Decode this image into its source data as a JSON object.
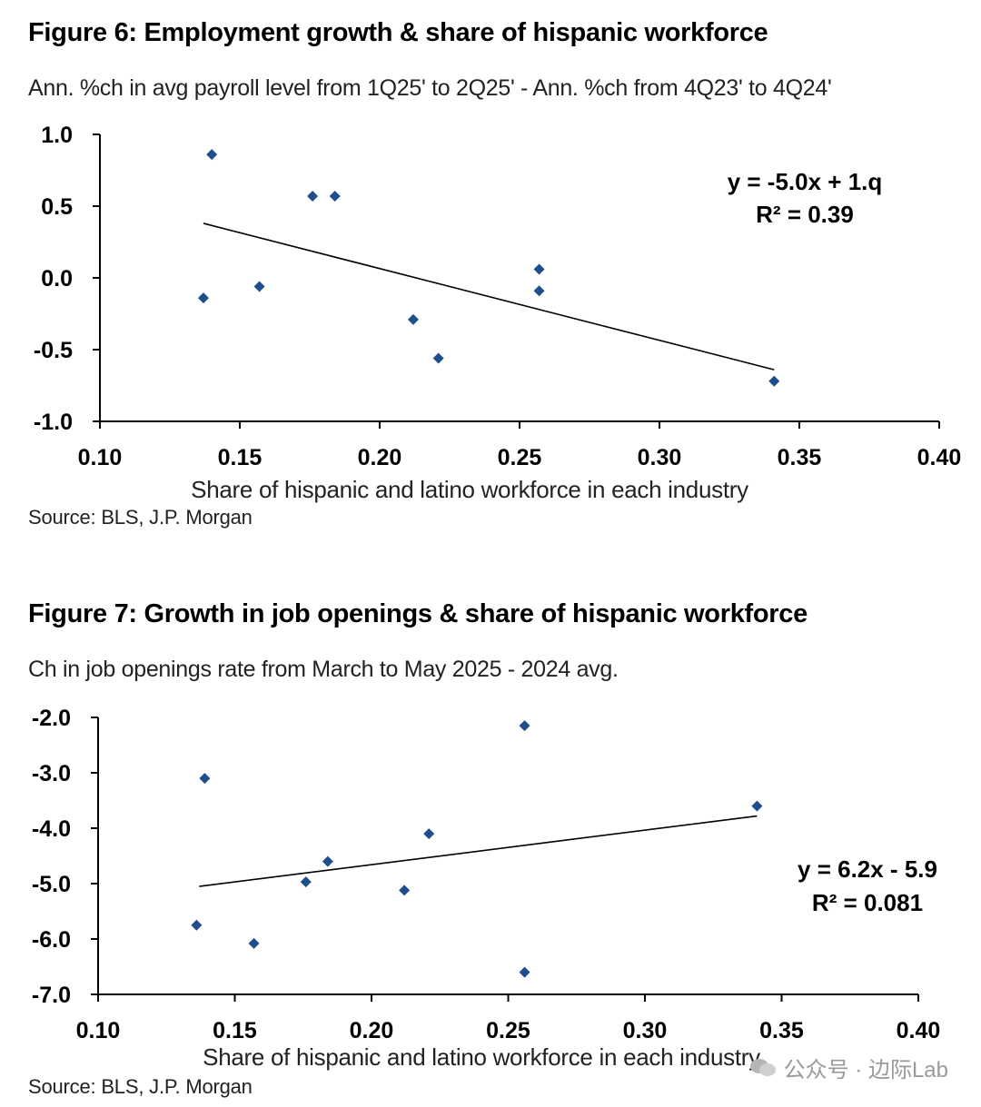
{
  "chart_data": [
    {
      "type": "scatter",
      "title": "Figure 6: Employment growth & share of hispanic workforce",
      "subtitle": "Ann. %ch in avg payroll level from 1Q25' to 2Q25' - Ann. %ch from 4Q23' to 4Q24'",
      "xlabel": "Share of hispanic and latino workforce in each industry",
      "ylabel": "",
      "source": "Source: BLS, J.P. Morgan",
      "xlim": [
        0.1,
        0.4
      ],
      "ylim": [
        -1.0,
        1.0
      ],
      "x_ticks": [
        "0.10",
        "0.15",
        "0.20",
        "0.25",
        "0.30",
        "0.35",
        "0.40"
      ],
      "y_ticks": [
        "1.0",
        "0.5",
        "0.0",
        "-0.5",
        "-1.0"
      ],
      "grid": false,
      "marker_color": "#1f4e8c",
      "points": [
        {
          "x": 0.14,
          "y": 0.86
        },
        {
          "x": 0.176,
          "y": 0.57
        },
        {
          "x": 0.184,
          "y": 0.57
        },
        {
          "x": 0.137,
          "y": -0.14
        },
        {
          "x": 0.157,
          "y": -0.06
        },
        {
          "x": 0.212,
          "y": -0.29
        },
        {
          "x": 0.221,
          "y": -0.56
        },
        {
          "x": 0.257,
          "y": 0.06
        },
        {
          "x": 0.257,
          "y": -0.09
        },
        {
          "x": 0.341,
          "y": -0.72
        }
      ],
      "trendline": {
        "x": [
          0.137,
          0.341
        ],
        "y": [
          0.38,
          -0.64
        ]
      },
      "equation": "y = -5.0x + 1.q",
      "r_squared": "R² = 0.39"
    },
    {
      "type": "scatter",
      "title": "Figure 7: Growth in job openings & share of hispanic workforce",
      "subtitle": "Ch in job openings rate from March to May 2025 - 2024 avg.",
      "xlabel": "Share of hispanic and latino workforce in each industry",
      "ylabel": "",
      "source": "Source: BLS, J.P. Morgan",
      "xlim": [
        0.1,
        0.4
      ],
      "ylim": [
        -7.0,
        -2.0
      ],
      "x_ticks": [
        "0.10",
        "0.15",
        "0.20",
        "0.25",
        "0.30",
        "0.35",
        "0.40"
      ],
      "y_ticks": [
        "-2.0",
        "-3.0",
        "-4.0",
        "-5.0",
        "-6.0",
        "-7.0"
      ],
      "grid": false,
      "marker_color": "#1f4e8c",
      "points": [
        {
          "x": 0.139,
          "y": -3.1
        },
        {
          "x": 0.136,
          "y": -5.75
        },
        {
          "x": 0.157,
          "y": -6.08
        },
        {
          "x": 0.176,
          "y": -4.97
        },
        {
          "x": 0.184,
          "y": -4.6
        },
        {
          "x": 0.212,
          "y": -5.12
        },
        {
          "x": 0.221,
          "y": -4.1
        },
        {
          "x": 0.256,
          "y": -2.15
        },
        {
          "x": 0.256,
          "y": -6.6
        },
        {
          "x": 0.341,
          "y": -3.6
        }
      ],
      "trendline": {
        "x": [
          0.137,
          0.341
        ],
        "y": [
          -5.05,
          -3.78
        ]
      },
      "equation": "y = 6.2x - 5.9",
      "r_squared": "R² = 0.081"
    }
  ],
  "watermark": {
    "text": "公众号 · 边际Lab",
    "icon": "wechat-icon"
  }
}
